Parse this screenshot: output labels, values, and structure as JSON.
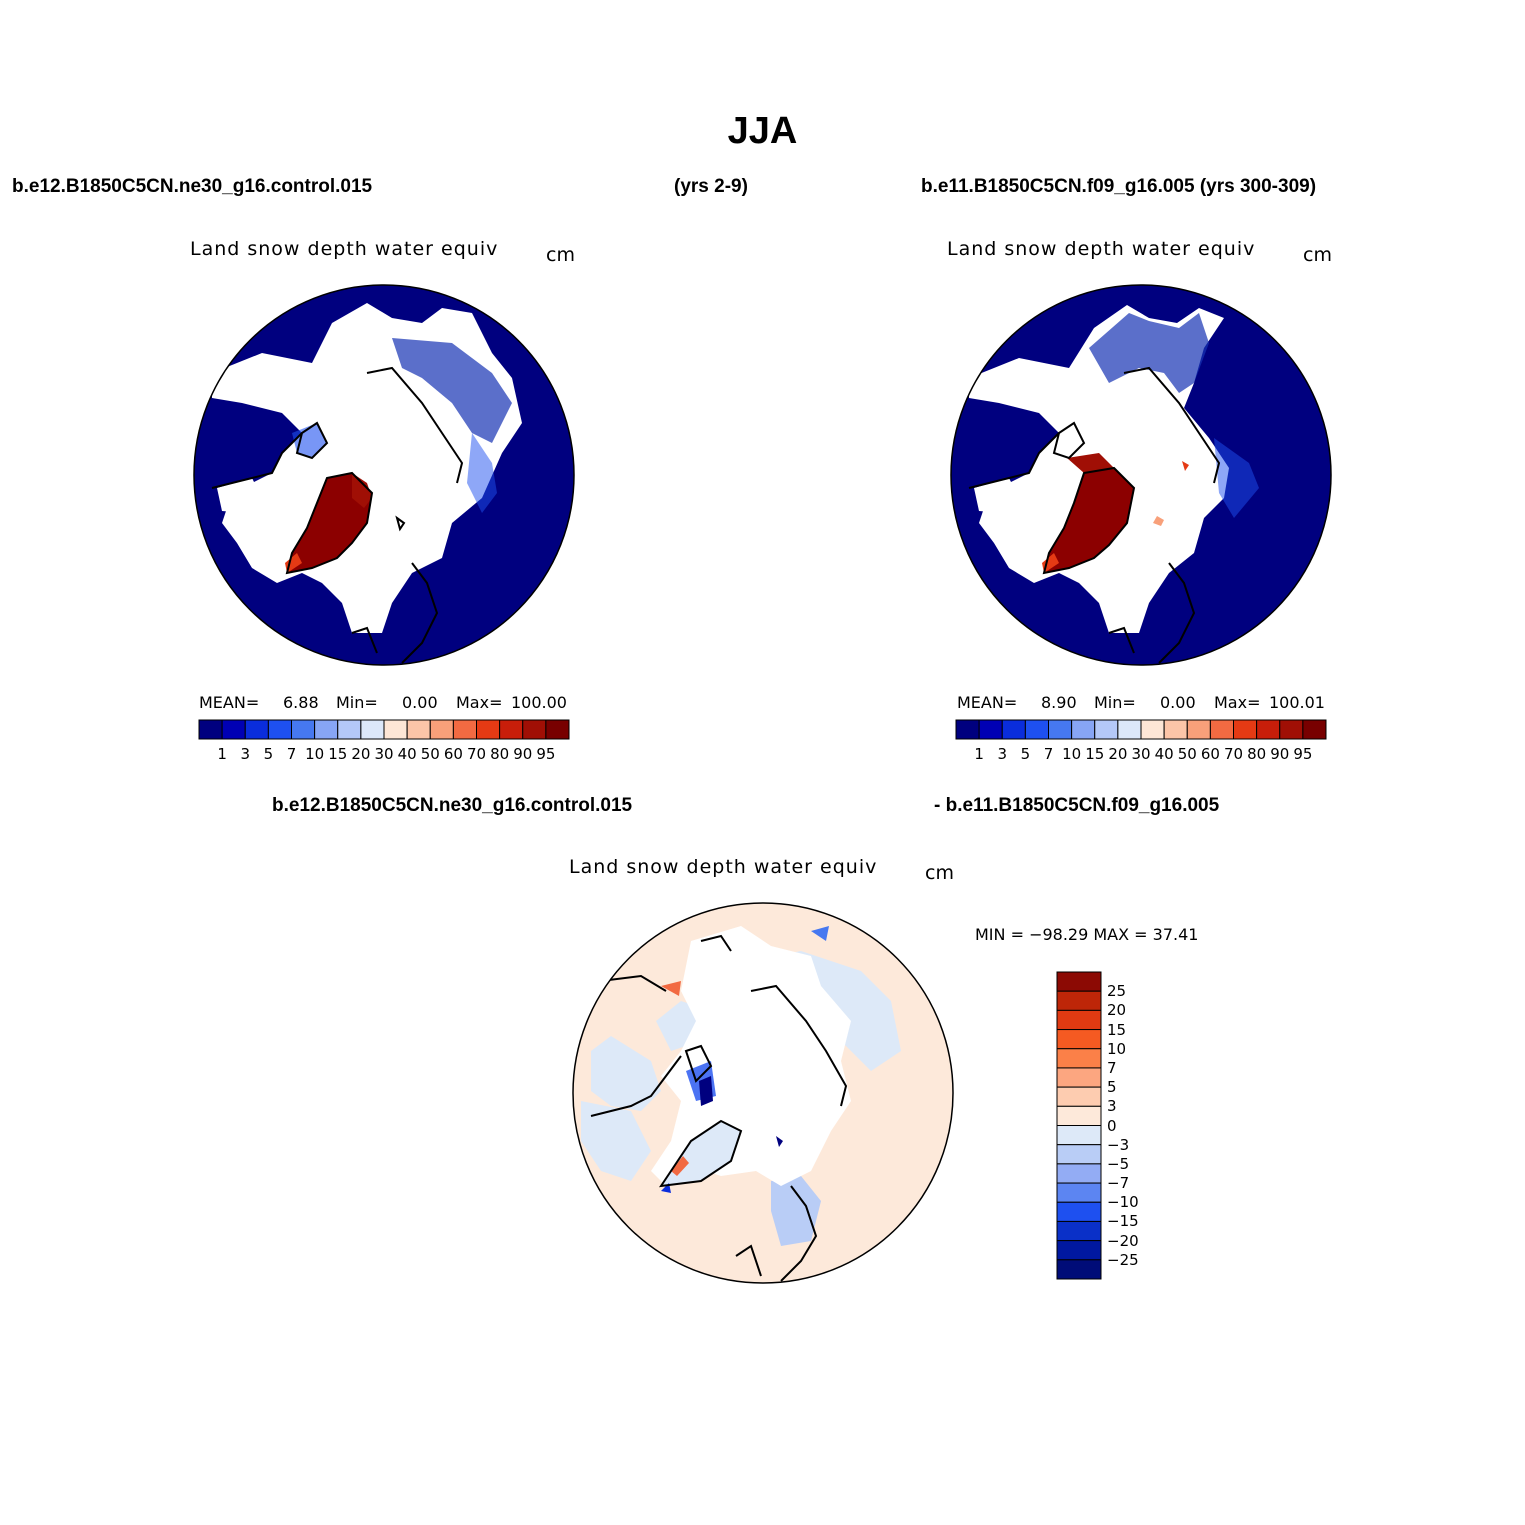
{
  "main_title": "JJA",
  "headers": {
    "left_case": "b.e12.B1850C5CN.ne30_g16.control.015",
    "years": "(yrs 2-9)",
    "right_case": "b.e11.B1850C5CN.f09_g16.005 (yrs 300-309)",
    "diff_left": "b.e12.B1850C5CN.ne30_g16.control.015",
    "diff_right": "- b.e11.B1850C5CN.f09_g16.005"
  },
  "panels": [
    {
      "variable": "Land snow depth water equiv",
      "units": "cm",
      "stats": {
        "mean_label": "MEAN=",
        "mean": "6.88",
        "min_label": "Min=",
        "min": "0.00",
        "max_label": "Max=",
        "max": "100.00"
      }
    },
    {
      "variable": "Land snow depth water equiv",
      "units": "cm",
      "stats": {
        "mean_label": "MEAN=",
        "mean": "8.90",
        "min_label": "Min=",
        "min": "0.00",
        "max_label": "Max=",
        "max": "100.01"
      }
    },
    {
      "variable": "Land snow depth water equiv",
      "units": "cm",
      "stats": {
        "text": "MIN = −98.29  MAX =   37.41"
      }
    }
  ],
  "colorbar_abs": {
    "labels": [
      "1",
      "3",
      "5",
      "7",
      "10",
      "15",
      "20",
      "30",
      "40",
      "50",
      "60",
      "70",
      "80",
      "90",
      "95"
    ],
    "colors": [
      "#00007f",
      "#0000b4",
      "#0a2ddc",
      "#1e50f0",
      "#4678f0",
      "#87a5f5",
      "#b4c8f8",
      "#dce8fa",
      "#fde6d6",
      "#fcc5a8",
      "#f8a07a",
      "#f26a42",
      "#e53a14",
      "#c81e0a",
      "#a00f05",
      "#780000"
    ]
  },
  "colorbar_diff": {
    "labels": [
      "25",
      "20",
      "15",
      "10",
      "7",
      "5",
      "3",
      "0",
      "−3",
      "−5",
      "−7",
      "−10",
      "−15",
      "−20",
      "−25"
    ],
    "colors": [
      "#8c0a04",
      "#be2608",
      "#e03a12",
      "#f55a22",
      "#fb8048",
      "#fca680",
      "#fdccb0",
      "#fde9da",
      "#dde9f8",
      "#b9cdf6",
      "#93acf4",
      "#5c85f2",
      "#1e50f0",
      "#0a30c8",
      "#0018a0",
      "#000c78"
    ]
  },
  "colors": {
    "ocean_abs": "#00007f",
    "greenland_abs": "#8c0000",
    "snowfree": "#ffffff",
    "diff_land": "#fde9da",
    "diff_light": "#dde9f8"
  }
}
